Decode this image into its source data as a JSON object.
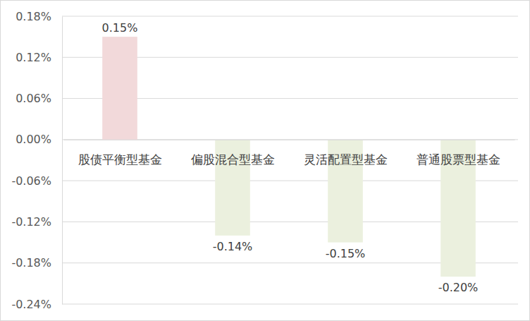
{
  "chart_data": {
    "type": "bar",
    "categories": [
      "股债平衡型基金",
      "偏股混合型基金",
      "灵活配置型基金",
      "普通股票型基金"
    ],
    "values": [
      0.15,
      -0.14,
      -0.15,
      -0.2
    ],
    "value_labels": [
      "0.15%",
      "-0.14%",
      "-0.15%",
      "-0.20%"
    ],
    "colors": [
      "#f2d9da",
      "#ebf0de",
      "#ebf0de",
      "#ebf0de"
    ],
    "ylim": [
      -0.24,
      0.18
    ],
    "yticks": [
      {
        "value": -0.24,
        "label": "-0.24%"
      },
      {
        "value": -0.18,
        "label": "-0.18%"
      },
      {
        "value": -0.12,
        "label": "-0.12%"
      },
      {
        "value": -0.06,
        "label": "-0.06%"
      },
      {
        "value": 0,
        "label": "0.00%"
      },
      {
        "value": 0.06,
        "label": "0.06%"
      },
      {
        "value": 0.12,
        "label": "0.12%"
      },
      {
        "value": 0.18,
        "label": "0.18%"
      }
    ],
    "grid": true,
    "data_labels": true
  }
}
